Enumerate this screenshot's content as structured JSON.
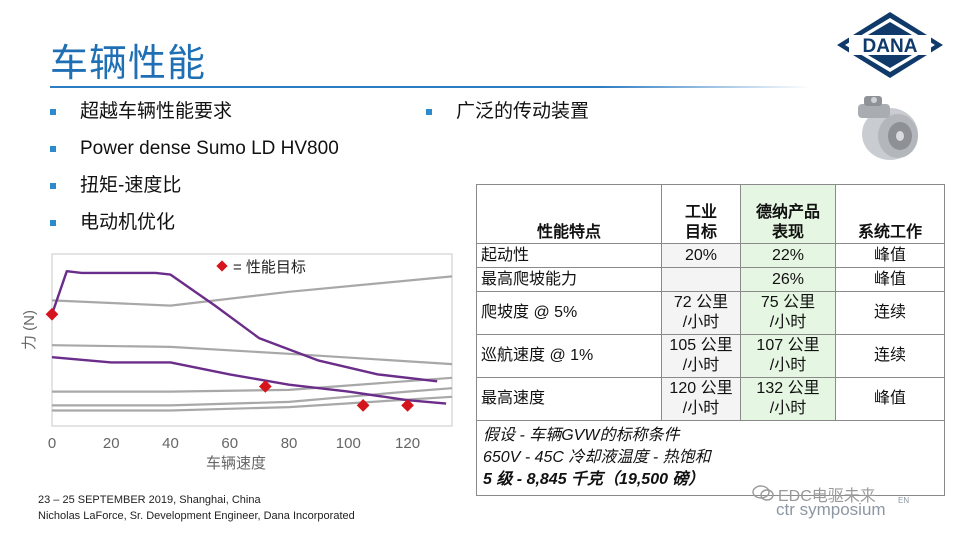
{
  "title": "车辆性能",
  "bullets_left": [
    "超越车辆性能要求",
    "Power dense Sumo LD HV800",
    "扭矩-速度比",
    "电动机优化"
  ],
  "bullet_right": "广泛的传动装置",
  "logo_text": "DANA",
  "chart_data": {
    "type": "line",
    "ylabel": "力 (N)",
    "xlabel": "车辆速度",
    "xlim": [
      0,
      135
    ],
    "xticks": [
      0,
      20,
      40,
      60,
      80,
      100,
      120
    ],
    "legend": "= 性能目标",
    "colors": {
      "purple": "#6b2d8a",
      "gray": "#a8a8a8",
      "target": "#d6141b"
    },
    "gray_lines": [
      [
        [
          0,
          0.53
        ],
        [
          40,
          0.54
        ],
        [
          80,
          0.58
        ],
        [
          135,
          0.64
        ]
      ],
      [
        [
          0,
          0.8
        ],
        [
          40,
          0.8
        ],
        [
          80,
          0.79
        ],
        [
          135,
          0.72
        ]
      ],
      [
        [
          0,
          0.88
        ],
        [
          40,
          0.88
        ],
        [
          80,
          0.86
        ],
        [
          120,
          0.8
        ],
        [
          135,
          0.78
        ]
      ],
      [
        [
          0,
          0.91
        ],
        [
          40,
          0.91
        ],
        [
          80,
          0.89
        ],
        [
          135,
          0.83
        ]
      ],
      [
        [
          0,
          0.27
        ],
        [
          40,
          0.3
        ],
        [
          80,
          0.22
        ],
        [
          135,
          0.13
        ]
      ]
    ],
    "purple_lines": [
      [
        [
          0,
          0.35
        ],
        [
          5,
          0.1
        ],
        [
          10,
          0.11
        ],
        [
          35,
          0.11
        ],
        [
          40,
          0.12
        ],
        [
          55,
          0.3
        ],
        [
          70,
          0.49
        ],
        [
          90,
          0.62
        ],
        [
          110,
          0.7
        ],
        [
          130,
          0.74
        ]
      ],
      [
        [
          0,
          0.6
        ],
        [
          20,
          0.63
        ],
        [
          40,
          0.63
        ],
        [
          60,
          0.7
        ],
        [
          80,
          0.76
        ],
        [
          100,
          0.8
        ],
        [
          120,
          0.85
        ],
        [
          133,
          0.87
        ]
      ]
    ],
    "targets": [
      [
        0,
        0.35
      ],
      [
        72,
        0.77
      ],
      [
        105,
        0.88
      ],
      [
        120,
        0.88
      ]
    ]
  },
  "table": {
    "headers": [
      "性能特点",
      "工业\n目标",
      "德纳产品\n表现",
      "系统工作"
    ],
    "rows": [
      [
        "起动性",
        "20%",
        "22%",
        "峰值"
      ],
      [
        "最高爬坡能力",
        "",
        "26%",
        "峰值"
      ],
      [
        "爬坡度 @ 5%",
        "72 公里\n/小时",
        "75 公里\n/小时",
        "连续"
      ],
      [
        "巡航速度 @ 1%",
        "105 公里\n/小时",
        "107 公里\n/小时",
        "连续"
      ],
      [
        "最高速度",
        "120 公里\n/小时",
        "132 公里\n/小时",
        "峰值"
      ]
    ],
    "notes": [
      "假设 - 车辆GVW的标称条件",
      "650V - 45C 冷却液温度 - 热饱和",
      "5 级 - 8,845 千克（19,500 磅）"
    ]
  },
  "footer": [
    "23 – 25 SEPTEMBER 2019, Shanghai, China",
    "Nicholas LaForce, Sr. Development Engineer, Dana Incorporated"
  ],
  "watermark": {
    "text": "EDC电驱未来",
    "symposium": "ctr symposium",
    "sup": "EN"
  }
}
